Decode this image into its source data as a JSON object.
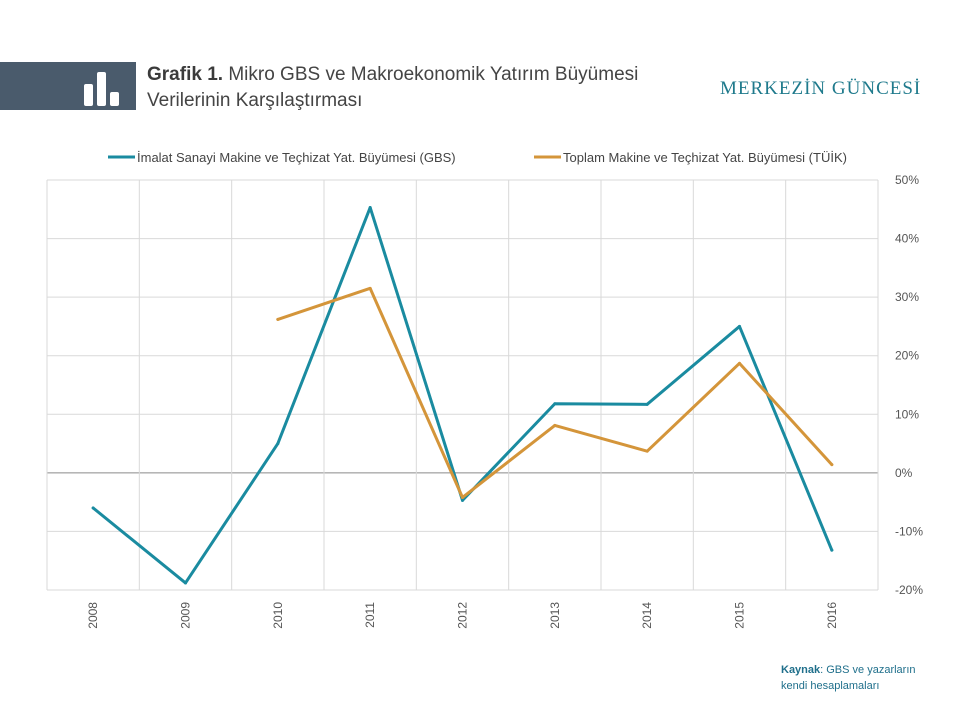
{
  "title": {
    "prefix": "Grafik 1.",
    "text": "Mikro GBS ve Makroekonomik Yatırım Büyümesi Verilerinin Karşılaştırması"
  },
  "brand": "MERKEZİN GÜNCESİ",
  "source": {
    "label": "Kaynak",
    "text": ": GBS ve yazarların kendi hesaplamaları"
  },
  "header_icon": "bar-chart-icon",
  "colors": {
    "gbs": "#1a8ba0",
    "tuik": "#d4953a",
    "band": "#4a5b6c"
  },
  "chart_data": {
    "type": "line",
    "x": [
      "2008",
      "2009",
      "2010",
      "2011",
      "2012",
      "2013",
      "2014",
      "2015",
      "2016"
    ],
    "series": [
      {
        "name": "İmalat Sanayi Makine ve Teçhizat Yat. Büyümesi (GBS)",
        "values": [
          -6,
          -18.8,
          5,
          45.3,
          -4.7,
          11.8,
          11.7,
          25,
          -13.2
        ]
      },
      {
        "name": "Toplam Makine ve Teçhizat Yat. Büyümesi (TÜİK)",
        "values": [
          null,
          null,
          26.2,
          31.5,
          -4.2,
          8.1,
          3.7,
          18.7,
          1.4
        ]
      }
    ],
    "ylim": [
      -20,
      50
    ],
    "yticks": [
      -20,
      -10,
      0,
      10,
      20,
      30,
      40,
      50
    ],
    "ytick_labels": [
      "-20%",
      "-10%",
      "0%",
      "10%",
      "20%",
      "30%",
      "40%",
      "50%"
    ],
    "y_axis_side": "right",
    "grid": true,
    "legend": "top-center"
  }
}
